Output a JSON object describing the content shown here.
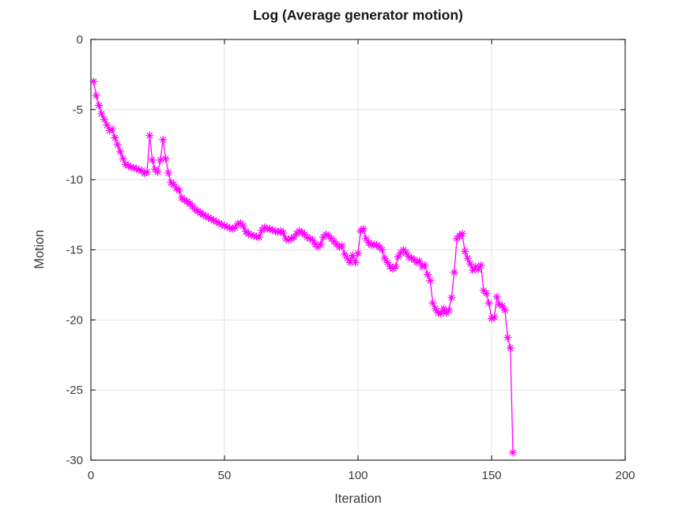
{
  "chart_data": {
    "type": "line",
    "title": "Log (Average generator motion)",
    "xlabel": "Iteration",
    "ylabel": "Motion",
    "xlim": [
      0,
      200
    ],
    "ylim": [
      -30,
      0
    ],
    "xticks": [
      0,
      50,
      100,
      150,
      200
    ],
    "yticks": [
      0,
      -5,
      -10,
      -15,
      -20,
      -25,
      -30
    ],
    "grid": true,
    "legend": "none",
    "line_color": "#ff00ff",
    "marker": "asterisk",
    "series_name": "log average generator motion",
    "x_start": 1,
    "x_step": 1,
    "y": [
      -3.0,
      -4.0,
      -4.7,
      -5.3,
      -5.7,
      -6.1,
      -6.5,
      -6.4,
      -7.0,
      -7.5,
      -8.0,
      -8.5,
      -8.9,
      -9.0,
      -9.1,
      -9.15,
      -9.2,
      -9.3,
      -9.35,
      -9.55,
      -9.45,
      -6.85,
      -8.6,
      -9.25,
      -9.45,
      -8.6,
      -7.15,
      -8.5,
      -9.5,
      -10.2,
      -10.35,
      -10.6,
      -10.75,
      -11.3,
      -11.45,
      -11.55,
      -11.7,
      -11.9,
      -12.1,
      -12.25,
      -12.35,
      -12.5,
      -12.6,
      -12.7,
      -12.8,
      -12.9,
      -13.0,
      -13.1,
      -13.2,
      -13.3,
      -13.35,
      -13.45,
      -13.5,
      -13.4,
      -13.15,
      -13.1,
      -13.3,
      -13.7,
      -13.85,
      -13.95,
      -14.0,
      -14.05,
      -14.1,
      -13.6,
      -13.4,
      -13.5,
      -13.5,
      -13.6,
      -13.65,
      -13.75,
      -13.65,
      -13.8,
      -14.2,
      -14.3,
      -14.2,
      -14.1,
      -13.85,
      -13.65,
      -13.75,
      -13.9,
      -14.1,
      -14.2,
      -14.3,
      -14.6,
      -14.8,
      -14.6,
      -14.1,
      -13.9,
      -14.0,
      -14.2,
      -14.4,
      -14.6,
      -14.8,
      -14.7,
      -15.3,
      -15.6,
      -15.9,
      -15.4,
      -15.9,
      -15.25,
      -13.65,
      -13.5,
      -14.2,
      -14.5,
      -14.65,
      -14.6,
      -14.65,
      -14.8,
      -15.0,
      -15.6,
      -15.9,
      -16.2,
      -16.35,
      -16.2,
      -15.5,
      -15.2,
      -15.0,
      -15.2,
      -15.5,
      -15.6,
      -15.7,
      -15.9,
      -15.8,
      -16.2,
      -16.1,
      -16.75,
      -17.2,
      -18.8,
      -19.2,
      -19.5,
      -19.55,
      -19.2,
      -19.5,
      -19.3,
      -18.4,
      -16.6,
      -14.2,
      -14.0,
      -13.85,
      -15.1,
      -15.6,
      -16.0,
      -16.45,
      -16.2,
      -16.4,
      -16.1,
      -17.9,
      -18.1,
      -18.8,
      -19.9,
      -19.8,
      -18.35,
      -18.9,
      -19.0,
      -19.3,
      -21.25,
      -22.0,
      -29.45
    ]
  }
}
